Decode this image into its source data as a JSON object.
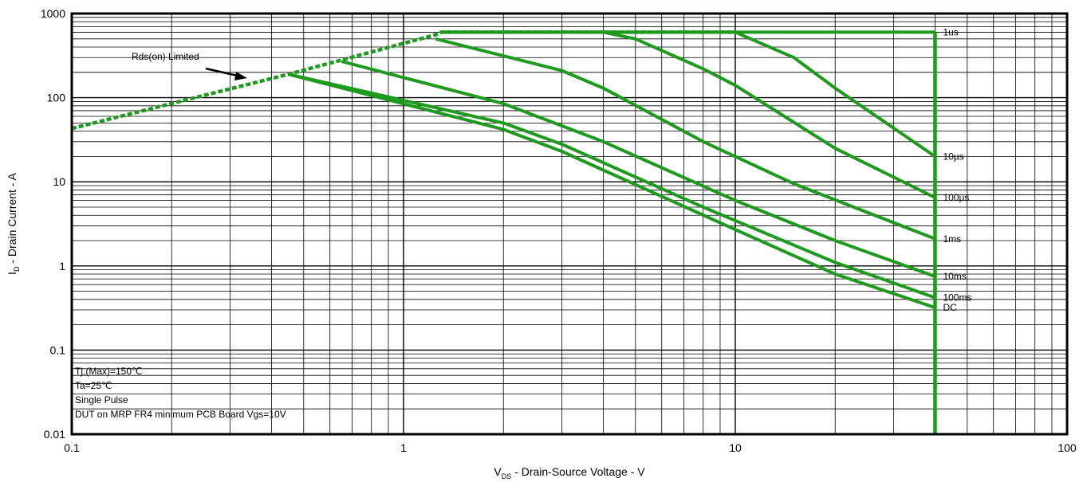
{
  "chart_data": {
    "type": "line",
    "title": "",
    "xlabel": {
      "main": "V",
      "sub": "DS",
      "rest": " - Drain-Source Voltage - V"
    },
    "ylabel": {
      "main": "I",
      "sub": "D",
      "rest": " - Drain Current - A"
    },
    "x_scale": "log",
    "y_scale": "log",
    "xlim": [
      0.1,
      100
    ],
    "ylim": [
      0.01,
      1000
    ],
    "grid": true,
    "x_ticks": [
      "0.1",
      "1",
      "10",
      "100"
    ],
    "y_ticks": [
      "0.01",
      "0.1",
      "1",
      "10",
      "100",
      "1000"
    ],
    "colors": {
      "curve": "#1e9a1e",
      "grid": "#000000"
    },
    "rds_limit": {
      "label": "Rds(on) Limited",
      "points": [
        [
          0.1,
          43
        ],
        [
          0.45,
          190
        ],
        [
          1.25,
          560
        ],
        [
          1.3,
          600
        ],
        [
          10,
          600
        ]
      ]
    },
    "series": [
      {
        "name": "1us",
        "points": [
          [
            1.3,
            600
          ],
          [
            40,
            600
          ]
        ]
      },
      {
        "name": "10µs",
        "points": [
          [
            1.3,
            600
          ],
          [
            10,
            600
          ],
          [
            15,
            300
          ],
          [
            20,
            130
          ],
          [
            40,
            20
          ]
        ]
      },
      {
        "name": "100µs",
        "points": [
          [
            1.3,
            600
          ],
          [
            4,
            600
          ],
          [
            5,
            500
          ],
          [
            8,
            220
          ],
          [
            10,
            140
          ],
          [
            20,
            25
          ],
          [
            40,
            6.5
          ]
        ]
      },
      {
        "name": "1ms",
        "points": [
          [
            1.25,
            500
          ],
          [
            3,
            210
          ],
          [
            4,
            130
          ],
          [
            8,
            30
          ],
          [
            15,
            9.5
          ],
          [
            40,
            2.1
          ]
        ]
      },
      {
        "name": "10ms",
        "points": [
          [
            0.65,
            270
          ],
          [
            2,
            85
          ],
          [
            4,
            30
          ],
          [
            10,
            6
          ],
          [
            20,
            2
          ],
          [
            40,
            0.75
          ]
        ]
      },
      {
        "name": "100ms",
        "points": [
          [
            0.45,
            190
          ],
          [
            2,
            50
          ],
          [
            3,
            28
          ],
          [
            8,
            5
          ],
          [
            20,
            1.1
          ],
          [
            40,
            0.42
          ]
        ]
      },
      {
        "name": "DC",
        "points": [
          [
            0.45,
            190
          ],
          [
            2,
            42
          ],
          [
            3,
            23
          ],
          [
            10,
            2.7
          ],
          [
            20,
            0.8
          ],
          [
            40,
            0.32
          ]
        ]
      }
    ],
    "vertical_limit": {
      "x": 40,
      "from": 0.01,
      "to": 600
    },
    "notes": [
      "Tj,(Max)=150℃",
      "Ta=25℃",
      "Single Pulse",
      "DUT on MRP FR4 minimum PCB Board Vgs=10V"
    ]
  }
}
